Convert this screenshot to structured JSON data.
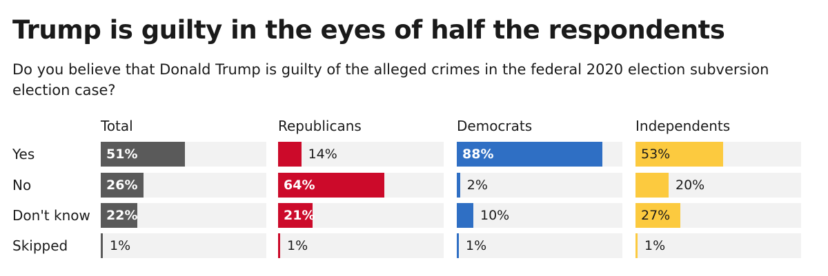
{
  "title": "Trump is guilty in the eyes of half the respondents",
  "subtitle": "Do you believe that Donald Trump is guilty of the alleged crimes in the federal 2020 election subversion election case?",
  "chart_data": {
    "type": "bar",
    "title": "Trump is guilty in the eyes of half the respondents",
    "subtitle": "Do you believe that Donald Trump is guilty of the alleged crimes in the federal 2020 election subversion election case?",
    "categories": [
      "Yes",
      "No",
      "Don't know",
      "Skipped"
    ],
    "xlim": [
      0,
      100
    ],
    "unit": "%",
    "series": [
      {
        "name": "Total",
        "color": "#5a5a5a",
        "values": [
          51,
          26,
          22,
          1
        ]
      },
      {
        "name": "Republicans",
        "color": "#cc0a2a",
        "values": [
          14,
          64,
          21,
          1
        ]
      },
      {
        "name": "Democrats",
        "color": "#2f6fc4",
        "values": [
          88,
          2,
          10,
          1
        ]
      },
      {
        "name": "Independents",
        "color": "#fcca3f",
        "values": [
          53,
          20,
          27,
          1
        ]
      }
    ],
    "labels": [
      [
        "51%",
        "26%",
        "22%",
        "1%"
      ],
      [
        "14%",
        "64%",
        "21%",
        "1%"
      ],
      [
        "88%",
        "2%",
        "10%",
        "1%"
      ],
      [
        "53%",
        "20%",
        "27%",
        "1%"
      ]
    ]
  }
}
